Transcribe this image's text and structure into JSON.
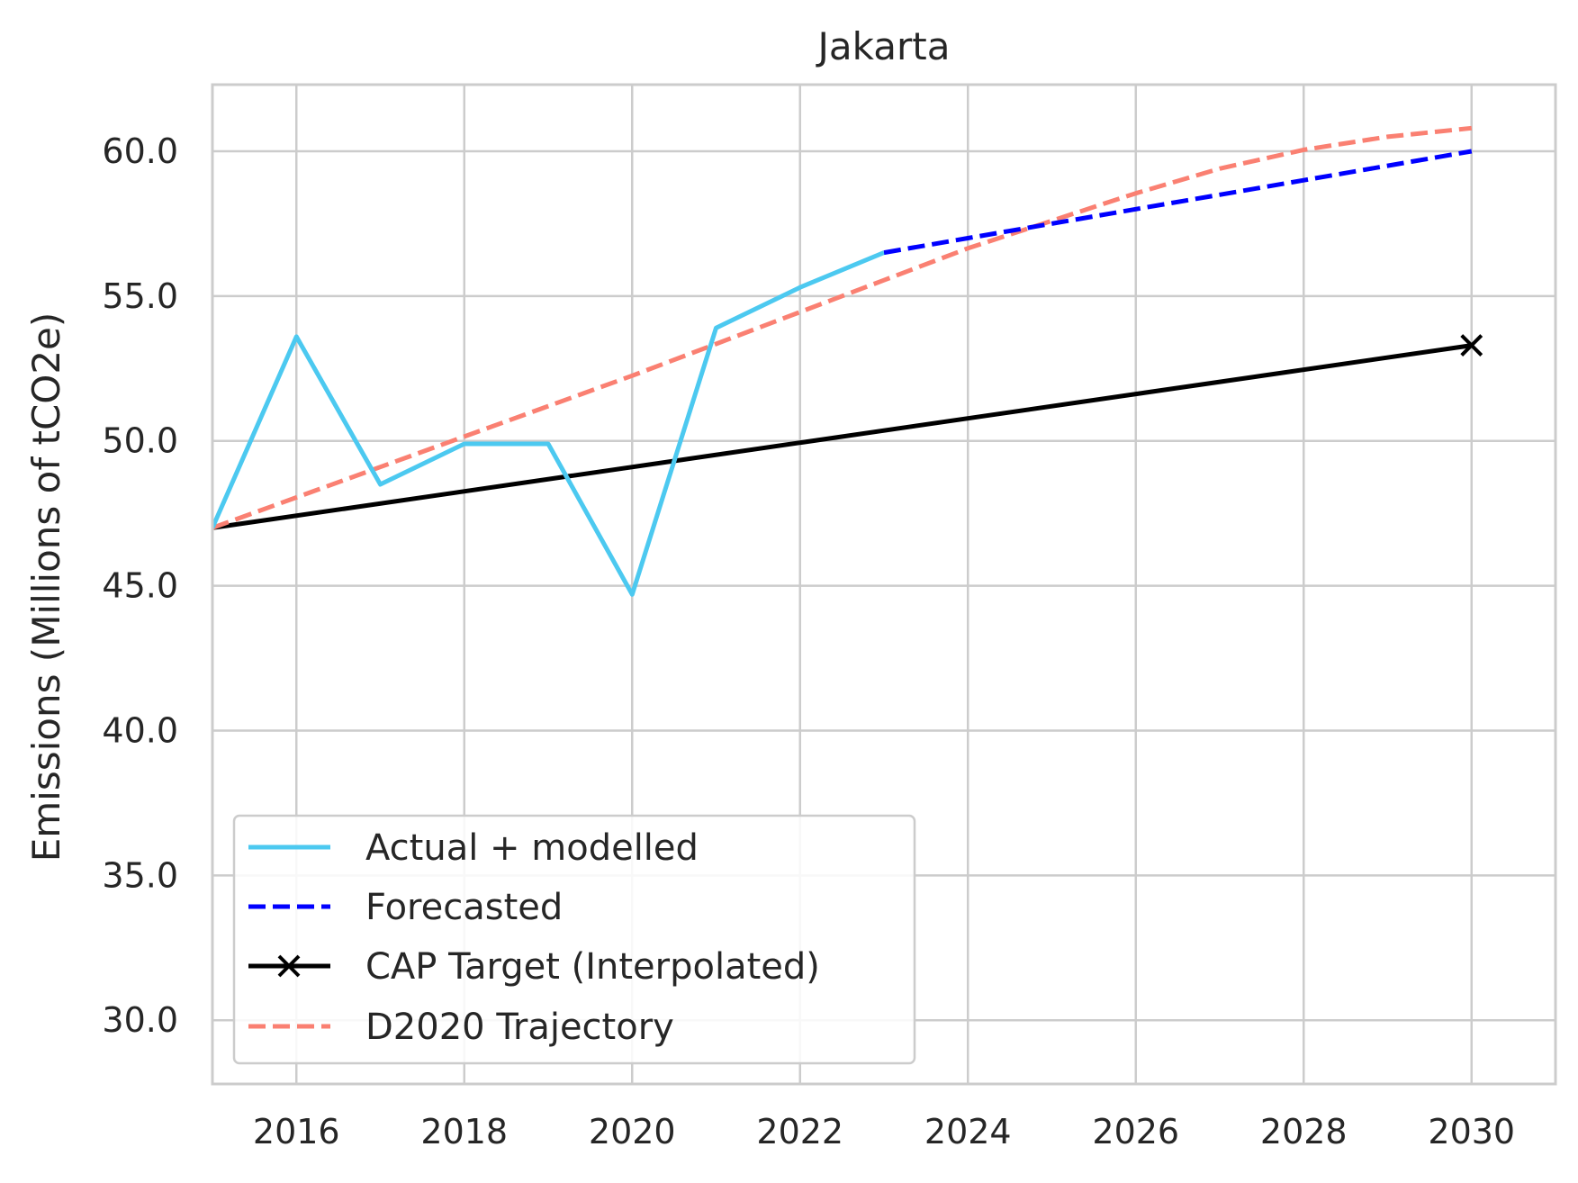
{
  "chart_data": {
    "type": "line",
    "title": "Jakarta",
    "xlabel": "",
    "ylabel": "Emissions (Millions of tCO2e)",
    "xlim": [
      2015,
      2031
    ],
    "ylim": [
      27.8,
      62.3
    ],
    "xticks": [
      2016,
      2018,
      2020,
      2022,
      2024,
      2026,
      2028,
      2030
    ],
    "yticks": [
      30.0,
      35.0,
      40.0,
      45.0,
      50.0,
      55.0,
      60.0
    ],
    "grid": true,
    "legend_position": "lower-left",
    "series": [
      {
        "name": "Actual + modelled",
        "color": "#4cc9f0",
        "style": "solid",
        "marker": "",
        "x": [
          2015,
          2016,
          2017,
          2018,
          2019,
          2020,
          2021,
          2022,
          2023
        ],
        "y": [
          47.0,
          53.6,
          48.5,
          49.9,
          49.9,
          44.7,
          53.9,
          55.3,
          56.5
        ]
      },
      {
        "name": "Forecasted",
        "color": "#0000ff",
        "style": "dashed",
        "marker": "",
        "x": [
          2023,
          2024,
          2025,
          2026,
          2027,
          2028,
          2029,
          2030
        ],
        "y": [
          56.5,
          57.0,
          57.5,
          58.0,
          58.5,
          59.0,
          59.5,
          60.0
        ]
      },
      {
        "name": "CAP Target (Interpolated)",
        "color": "#000000",
        "style": "solid",
        "marker": "x",
        "x": [
          2015,
          2030
        ],
        "y": [
          47.0,
          53.3
        ]
      },
      {
        "name": "D2020 Trajectory",
        "color": "#fa8072",
        "style": "dashed",
        "marker": "",
        "x": [
          2015,
          2016,
          2017,
          2018,
          2019,
          2020,
          2021,
          2022,
          2023,
          2024,
          2025,
          2026,
          2027,
          2028,
          2029,
          2030
        ],
        "y": [
          47.0,
          48.05,
          49.1,
          50.15,
          51.2,
          52.25,
          53.35,
          54.45,
          55.55,
          56.65,
          57.6,
          58.55,
          59.4,
          60.05,
          60.5,
          60.8
        ]
      }
    ]
  }
}
